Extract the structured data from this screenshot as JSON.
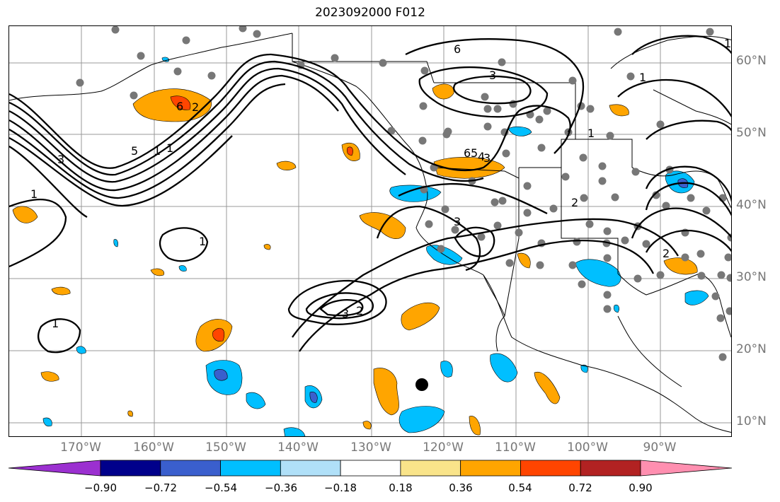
{
  "title": "2023092000 F012",
  "lat_labels": [
    {
      "text": "60°N"
    },
    {
      "text": "50°N"
    },
    {
      "text": "40°N"
    },
    {
      "text": "30°N"
    },
    {
      "text": "20°N"
    },
    {
      "text": "10°N"
    }
  ],
  "lon_labels": [
    {
      "text": "170°W"
    },
    {
      "text": "160°W"
    },
    {
      "text": "150°W"
    },
    {
      "text": "140°W"
    },
    {
      "text": "130°W"
    },
    {
      "text": "120°W"
    },
    {
      "text": "110°W"
    },
    {
      "text": "100°W"
    },
    {
      "text": "90°W"
    }
  ],
  "colorbar": {
    "labels": [
      "−0.90",
      "−0.72",
      "−0.54",
      "−0.36",
      "−0.18",
      "0.18",
      "0.36",
      "0.54",
      "0.72",
      "0.90"
    ],
    "colors": [
      "#9b30d0",
      "#00008b",
      "#3a5fcd",
      "#00bfff",
      "#b0e0f8",
      "#ffffff",
      "#f9e48a",
      "#ffa500",
      "#ff4500",
      "#b22222",
      "#ff8fb0"
    ]
  },
  "contour_labels": [
    "6",
    "3",
    "1",
    "3",
    "5",
    "1",
    "1",
    "6",
    "3",
    "1",
    "2",
    "1",
    "3",
    "2",
    "1",
    "2",
    "6",
    "5",
    "4",
    "3",
    "2",
    "1",
    "1"
  ]
}
